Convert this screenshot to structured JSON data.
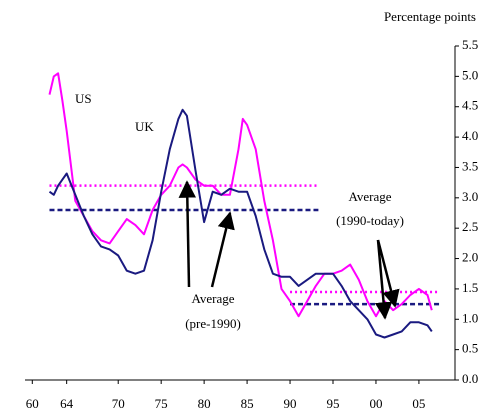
{
  "chart_data": {
    "type": "line",
    "y_axis_label": "Percentage points",
    "x": [
      1962,
      1962.5,
      1963,
      1963.5,
      1964,
      1965,
      1966,
      1967,
      1968,
      1969,
      1970,
      1971,
      1972,
      1973,
      1974,
      1975,
      1976,
      1977,
      1977.5,
      1978,
      1979,
      1980,
      1981,
      1982,
      1983,
      1984,
      1984.5,
      1985,
      1986,
      1987,
      1988,
      1989,
      1990,
      1991,
      1992,
      1993,
      1994,
      1995,
      1996,
      1997,
      1998,
      1999,
      2000,
      2001,
      2002,
      2003,
      2004,
      2005,
      2006,
      2006.5
    ],
    "series": [
      {
        "name": "US",
        "color": "#ff00ff",
        "values": [
          4.7,
          5.0,
          5.05,
          4.6,
          4.1,
          2.95,
          2.7,
          2.45,
          2.3,
          2.25,
          2.45,
          2.65,
          2.55,
          2.4,
          2.8,
          3.05,
          3.2,
          3.5,
          3.55,
          3.5,
          3.3,
          3.2,
          3.2,
          3.05,
          3.05,
          3.8,
          4.3,
          4.2,
          3.8,
          2.95,
          2.3,
          1.5,
          1.3,
          1.05,
          1.3,
          1.55,
          1.75,
          1.75,
          1.8,
          1.9,
          1.65,
          1.3,
          1.05,
          1.3,
          1.15,
          1.25,
          1.4,
          1.5,
          1.4,
          1.15
        ]
      },
      {
        "name": "UK",
        "color": "#1a1a80",
        "values": [
          3.1,
          3.05,
          3.2,
          3.3,
          3.4,
          3.05,
          2.7,
          2.4,
          2.2,
          2.15,
          2.05,
          1.8,
          1.75,
          1.8,
          2.3,
          3.1,
          3.8,
          4.3,
          4.45,
          4.35,
          3.45,
          2.6,
          3.1,
          3.05,
          3.15,
          3.1,
          3.1,
          3.1,
          2.7,
          2.15,
          1.75,
          1.7,
          1.7,
          1.55,
          1.65,
          1.75,
          1.75,
          1.75,
          1.55,
          1.3,
          1.15,
          1.0,
          0.75,
          0.7,
          0.75,
          0.8,
          0.95,
          0.95,
          0.9,
          0.8
        ]
      }
    ],
    "reference_lines": [
      {
        "value": 3.2,
        "start": 1962,
        "end": 1993.3,
        "color": "#ff00ff",
        "style": "dotted"
      },
      {
        "value": 2.8,
        "start": 1962,
        "end": 1993.3,
        "color": "#1a1a80",
        "style": "dashed"
      },
      {
        "value": 1.45,
        "start": 1990,
        "end": 2007.4,
        "color": "#ff00ff",
        "style": "dotted"
      },
      {
        "value": 1.25,
        "start": 1990,
        "end": 2007.4,
        "color": "#1a1a80",
        "style": "dashed"
      }
    ],
    "annotations": [
      "US",
      "UK",
      "Average",
      "(pre-1990)",
      "Average",
      "(1990-today)"
    ],
    "xlim": [
      1959.5,
      2009.2
    ],
    "xticks": [
      {
        "value": 1960,
        "label": "60"
      },
      {
        "value": 1964,
        "label": "64"
      },
      {
        "value": 1970,
        "label": "70"
      },
      {
        "value": 1975,
        "label": "75"
      },
      {
        "value": 1980,
        "label": "80"
      },
      {
        "value": 1985,
        "label": "85"
      },
      {
        "value": 1990,
        "label": "90"
      },
      {
        "value": 1995,
        "label": "95"
      },
      {
        "value": 2000,
        "label": "00"
      },
      {
        "value": 2005,
        "label": "05"
      }
    ],
    "ylim": [
      0,
      5.5
    ],
    "yticks": [
      {
        "value": 0,
        "label": "0.0"
      },
      0.5,
      {
        "value": 1,
        "label": "1.0"
      },
      1.5,
      {
        "value": 2,
        "label": "2.0"
      },
      2.5,
      {
        "value": 3,
        "label": "3.0"
      },
      3.5,
      {
        "value": 4,
        "label": "4.0"
      },
      4.5,
      {
        "value": 5,
        "label": "5.0"
      },
      5.5
    ],
    "grid": false
  }
}
